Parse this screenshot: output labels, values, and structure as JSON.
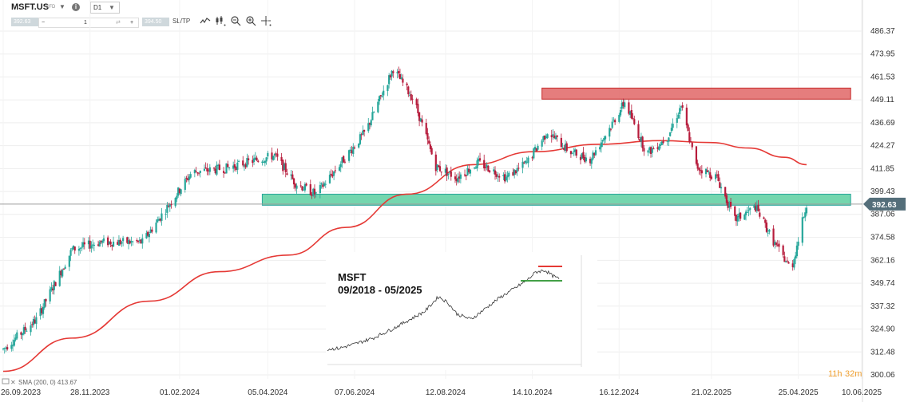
{
  "toolbar": {
    "symbol": "MSFT.US",
    "symbol_type": "CFD",
    "timeframe": "D1",
    "sell_price": "392.63",
    "buy_price": "394.50",
    "quantity": "1",
    "minus_label": "−",
    "plus_label": "+",
    "sltp_label": "SL/TP"
  },
  "chart": {
    "indicator_label": "SMA (200, 0) 413.67",
    "countdown_hours": "11h",
    "countdown_minutes": "32m",
    "current_price_label": "392.63",
    "colors": {
      "up": "#26a69a",
      "down": "#b71c3c",
      "sma": "#e53935",
      "resistance": "#e06666",
      "support": "#5ccfa0"
    }
  },
  "inset": {
    "title": "MSFT",
    "subtitle": "09/2018 - 05/2025"
  },
  "chart_data": {
    "type": "candlestick",
    "price_axis_ticks": [
      "486.37",
      "473.95",
      "461.53",
      "449.11",
      "436.69",
      "424.27",
      "411.85",
      "399.43",
      "387.06",
      "374.58",
      "362.16",
      "349.74",
      "337.32",
      "324.90",
      "312.48",
      "300.06"
    ],
    "time_axis_ticks": [
      "26.09.2023",
      "28.11.2023",
      "01.02.2024",
      "05.04.2024",
      "07.06.2024",
      "12.08.2024",
      "14.10.2024",
      "16.12.2024",
      "21.02.2025",
      "25.04.2025",
      "10.06.2025"
    ],
    "ylim": [
      300.06,
      492.0
    ],
    "current_price": 392.63,
    "resistance_zone": {
      "from": "2024-10-21",
      "to": "2025-06-02",
      "low": 449.5,
      "high": 455.5
    },
    "support_zone": {
      "from": "2024-04-01",
      "to": "2025-06-02",
      "low": 392.0,
      "high": 398.0
    },
    "sma_200": {
      "dates": [
        "2023-09-26",
        "2023-11-15",
        "2024-01-10",
        "2024-03-01",
        "2024-04-20",
        "2024-06-01",
        "2024-07-15",
        "2024-09-01",
        "2024-10-15",
        "2024-12-01",
        "2025-01-15",
        "2025-02-20",
        "2025-03-20",
        "2025-04-15",
        "2025-05-01"
      ],
      "values": [
        302,
        320,
        340,
        356,
        365,
        380,
        398,
        414,
        421,
        425,
        427,
        426,
        423,
        418,
        414
      ]
    },
    "price_path": {
      "dates": [
        "2023-09-26",
        "2023-10-20",
        "2023-11-15",
        "2023-12-05",
        "2024-01-05",
        "2024-01-25",
        "2024-02-10",
        "2024-03-05",
        "2024-03-25",
        "2024-04-10",
        "2024-04-25",
        "2024-05-10",
        "2024-05-25",
        "2024-06-15",
        "2024-07-05",
        "2024-07-20",
        "2024-08-05",
        "2024-08-20",
        "2024-09-05",
        "2024-09-25",
        "2024-10-10",
        "2024-10-25",
        "2024-11-10",
        "2024-11-25",
        "2024-12-10",
        "2024-12-20",
        "2025-01-05",
        "2025-01-20",
        "2025-01-30",
        "2025-02-10",
        "2025-02-25",
        "2025-03-10",
        "2025-03-25",
        "2025-04-08",
        "2025-04-20",
        "2025-05-01"
      ],
      "values": [
        314,
        330,
        368,
        372,
        372,
        393,
        410,
        412,
        416,
        419,
        404,
        398,
        412,
        432,
        466,
        449,
        413,
        407,
        415,
        407,
        415,
        432,
        421,
        417,
        435,
        448,
        420,
        429,
        446,
        413,
        407,
        384,
        391,
        371,
        357,
        393
      ]
    }
  }
}
